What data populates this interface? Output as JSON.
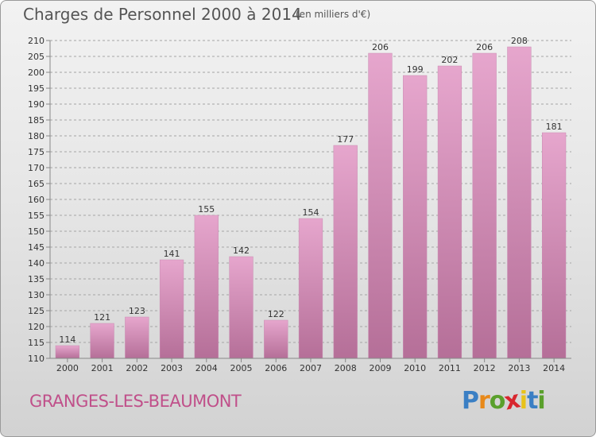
{
  "header": {
    "title": "Charges de Personnel 2000 à 2014",
    "subtitle": "(en milliers d'€)"
  },
  "footer": {
    "location": "GRANGES-LES-BEAUMONT",
    "brand_letters": [
      "P",
      "r",
      "o",
      "x",
      "i",
      "t",
      "i"
    ],
    "brand_colors": [
      "#3a7fc4",
      "#e8891a",
      "#5aa02c",
      "#d8262e",
      "#e8c21a",
      "#3a7fc4",
      "#5aa02c"
    ]
  },
  "colors": {
    "bar_top": "#e6a6cd",
    "bar_bottom": "#b56f98",
    "grid": "#a5a5a5",
    "axis": "#888888"
  },
  "chart_data": {
    "type": "bar",
    "title": "Charges de Personnel 2000 à 2014",
    "subtitle": "(en milliers d'€)",
    "categories": [
      "2000",
      "2001",
      "2002",
      "2003",
      "2004",
      "2005",
      "2006",
      "2007",
      "2008",
      "2009",
      "2010",
      "2011",
      "2012",
      "2013",
      "2014"
    ],
    "values": [
      114,
      121,
      123,
      141,
      155,
      142,
      122,
      154,
      177,
      206,
      199,
      202,
      206,
      208,
      181
    ],
    "ylim": [
      110,
      210
    ],
    "yticks": [
      110,
      115,
      120,
      125,
      130,
      135,
      140,
      145,
      150,
      155,
      160,
      165,
      170,
      175,
      180,
      185,
      190,
      195,
      200,
      205,
      210
    ],
    "grid": true,
    "grid_style": "dashed horizontal",
    "data_labels": true
  }
}
